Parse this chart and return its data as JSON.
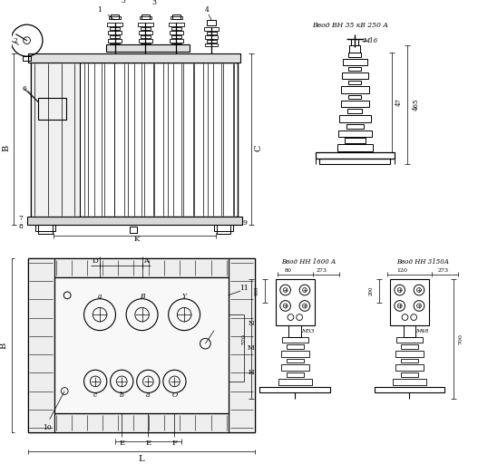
{
  "bg_color": "#ffffff",
  "line_color": "#000000",
  "fig_width": 5.27,
  "fig_height": 5.12,
  "dpi": 100,
  "label_vvod_vn": "Ввод ВН 35 кВ 250 А",
  "label_vvod_nn_1600": "Ввод НН 1600 А",
  "label_vvod_nn_3150": "Ввод НН 3150А",
  "label_m16": "М16",
  "label_m33": "М33",
  "label_m48": "М48"
}
